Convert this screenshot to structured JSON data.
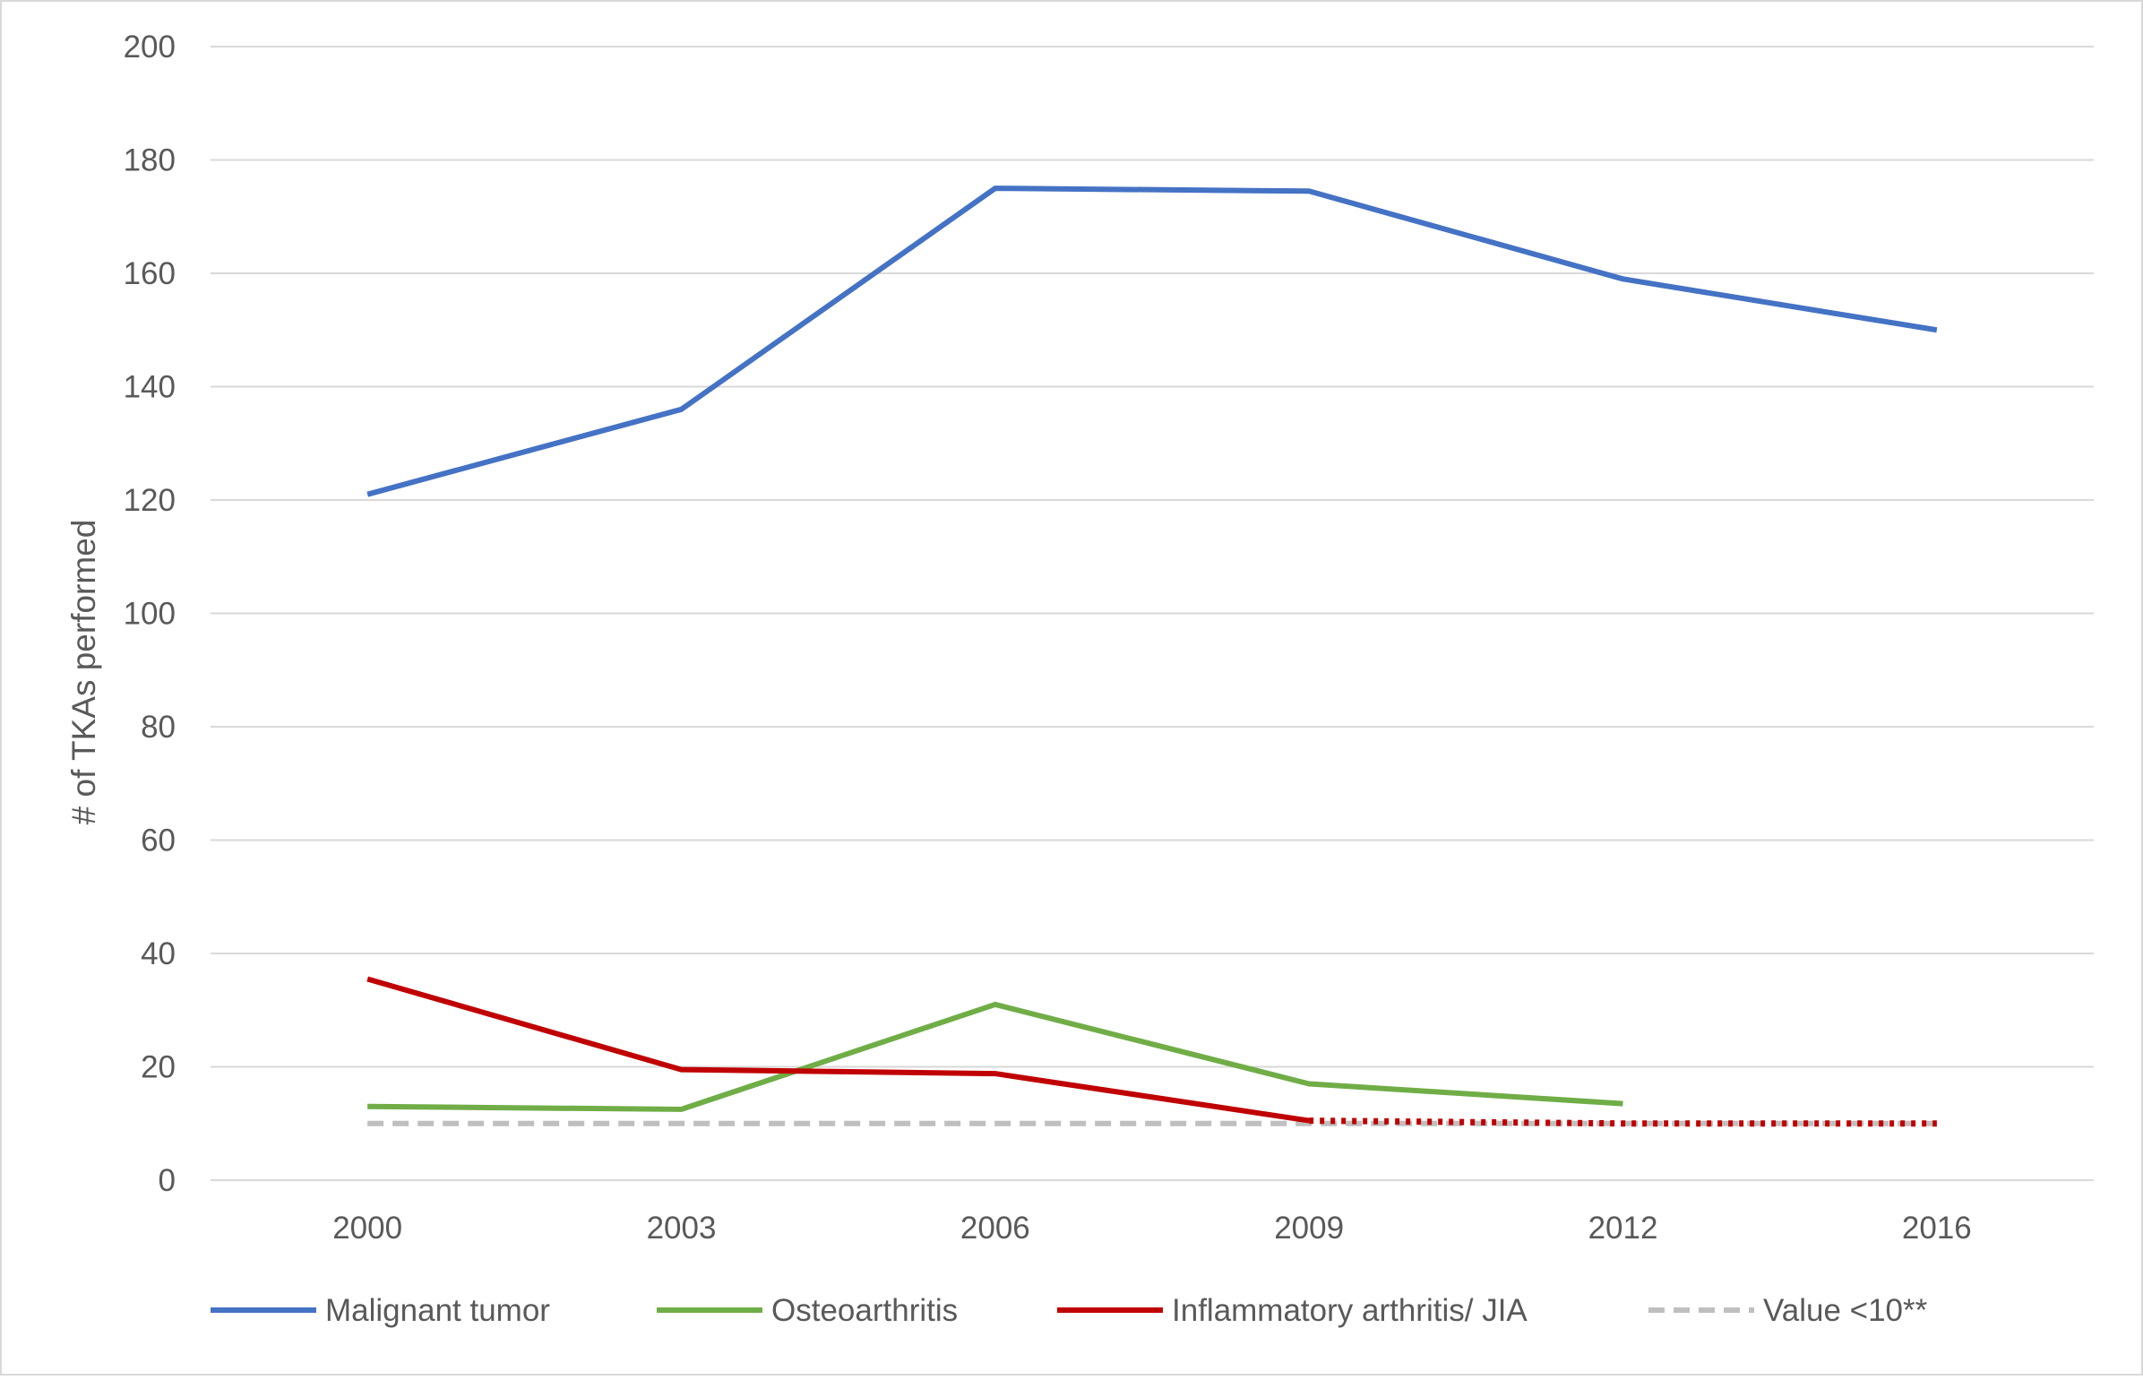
{
  "chart_data": {
    "type": "line",
    "title": "",
    "xlabel": "",
    "ylabel": "# of TKAs performed",
    "categories": [
      "2000",
      "2003",
      "2006",
      "2009",
      "2012",
      "2016"
    ],
    "ylim": [
      0,
      200
    ],
    "yticks": [
      0,
      20,
      40,
      60,
      80,
      100,
      120,
      140,
      160,
      180,
      200
    ],
    "grid": true,
    "legend_position": "bottom",
    "series": [
      {
        "name": "Malignant tumor",
        "color": "#4472C4",
        "style": "solid",
        "values": [
          121,
          136,
          175,
          174.5,
          159,
          150
        ]
      },
      {
        "name": "Osteoarthritis",
        "color": "#70AD47",
        "style": "solid",
        "values": [
          13,
          12.5,
          31,
          17,
          13.5,
          null
        ]
      },
      {
        "name": "Inflammatory arthritis/ JIA",
        "color": "#C00000",
        "style": "solid",
        "values": [
          35.5,
          19.5,
          18.8,
          10.5,
          null,
          null
        ]
      },
      {
        "name": "Value <10**",
        "color": "#BFBFBF",
        "style": "dashed",
        "values": [
          10,
          10,
          10,
          10,
          10,
          10
        ]
      }
    ],
    "overlays": [
      {
        "series": "Inflammatory arthritis/ JIA",
        "color": "#C00000",
        "style": "dotted",
        "values": [
          null,
          null,
          null,
          10.5,
          10,
          10
        ]
      }
    ]
  }
}
